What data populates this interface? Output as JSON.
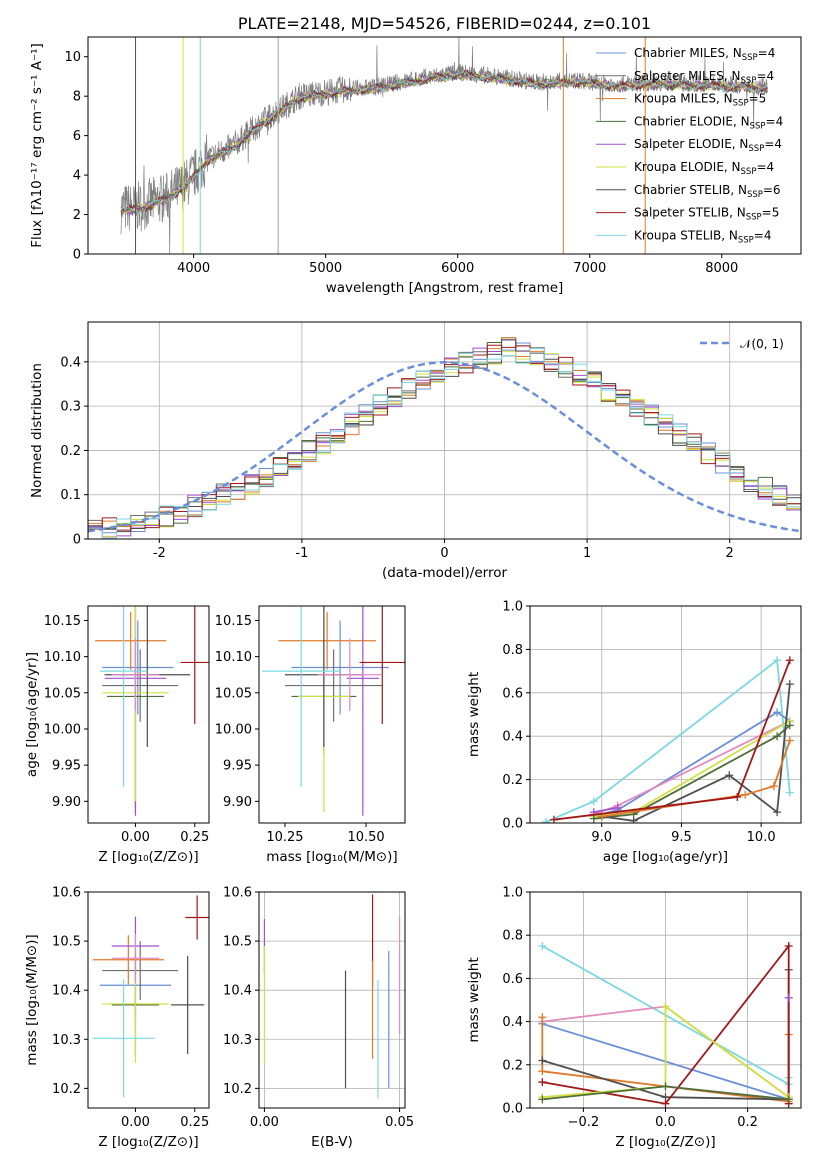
{
  "colors": {
    "Chabrier MILES": "#6a8fd8",
    "Salpeter MILES": "#6f6f6f",
    "Kroupa MILES": "#e07a2a",
    "Chabrier ELODIE": "#4f6e3a",
    "Salpeter ELODIE": "#a24fd0",
    "Kroupa ELODIE": "#d2e042",
    "Chabrier STELIB": "#4f4f4f",
    "Salpeter STELIB": "#a01818",
    "Kroupa STELIB": "#7ad8e0",
    "pink": "#e48ac0",
    "normal": "#6a8fd8"
  },
  "chart_data": [
    {
      "id": "spectrum",
      "type": "line",
      "title": "PLATE=2148, MJD=54526, FIBERID=0244, z=0.101",
      "xlabel": "wavelength [Angstrom, rest frame]",
      "ylabel": "Flux [fλ10⁻¹⁷ erg cm⁻² s⁻¹ A⁻¹]",
      "xlim": [
        3200,
        8600
      ],
      "ylim": [
        0,
        11
      ],
      "xticks": [
        4000,
        5000,
        6000,
        7000,
        8000
      ],
      "yticks": [
        0,
        2,
        4,
        6,
        8,
        10
      ],
      "grid": false,
      "legend_position": "right",
      "legend": [
        {
          "label": "Chabrier MILES, N",
          "sub": "SSP",
          "tail": "=4"
        },
        {
          "label": "Salpeter MILES, N",
          "sub": "SSP",
          "tail": "=4"
        },
        {
          "label": "Kroupa MILES, N",
          "sub": "SSP",
          "tail": "=5"
        },
        {
          "label": "Chabrier ELODIE, N",
          "sub": "SSP",
          "tail": "=4"
        },
        {
          "label": "Salpeter ELODIE, N",
          "sub": "SSP",
          "tail": "=4"
        },
        {
          "label": "Kroupa ELODIE, N",
          "sub": "SSP",
          "tail": "=4"
        },
        {
          "label": "Chabrier STELIB, N",
          "sub": "SSP",
          "tail": "=6"
        },
        {
          "label": "Salpeter STELIB, N",
          "sub": "SSP",
          "tail": "=5"
        },
        {
          "label": "Kroupa STELIB, N",
          "sub": "SSP",
          "tail": "=4"
        }
      ],
      "continuum": {
        "x": [
          3450,
          3600,
          3800,
          3950,
          4100,
          4300,
          4500,
          4800,
          5100,
          5400,
          5700,
          6000,
          6300,
          6600,
          6900,
          7200,
          7500,
          8000,
          8350
        ],
        "y": [
          2.3,
          2.4,
          2.9,
          3.6,
          4.8,
          5.5,
          6.6,
          8.0,
          8.3,
          8.5,
          8.9,
          9.2,
          9.0,
          8.7,
          8.8,
          8.6,
          8.7,
          8.6,
          8.5
        ]
      }
    },
    {
      "id": "residuals",
      "type": "histogram",
      "xlabel": "(data-model)/error",
      "ylabel": "Normed distribution",
      "xlim": [
        -2.5,
        2.5
      ],
      "ylim": [
        0,
        0.49
      ],
      "xticks": [
        -2,
        -1,
        0,
        1,
        2
      ],
      "yticks": [
        0.0,
        0.1,
        0.2,
        0.3,
        0.4
      ],
      "grid": true,
      "legend_label": "𝒩(0, 1)",
      "bin_width": 0.1,
      "bin_start": -2.5,
      "base_counts": [
        0.022,
        0.025,
        0.03,
        0.035,
        0.04,
        0.05,
        0.06,
        0.075,
        0.085,
        0.1,
        0.11,
        0.125,
        0.14,
        0.16,
        0.18,
        0.2,
        0.215,
        0.24,
        0.26,
        0.28,
        0.3,
        0.32,
        0.34,
        0.355,
        0.375,
        0.39,
        0.4,
        0.41,
        0.42,
        0.43,
        0.42,
        0.41,
        0.4,
        0.39,
        0.37,
        0.355,
        0.335,
        0.315,
        0.3,
        0.28,
        0.26,
        0.235,
        0.215,
        0.195,
        0.17,
        0.15,
        0.13,
        0.115,
        0.1,
        0.085,
        0.072,
        0.06,
        0.05,
        0.04,
        0.035,
        0.03,
        0.025,
        0.022
      ]
    },
    {
      "id": "age_vs_Z",
      "type": "errorbar",
      "xlabel": "Z [log₁₀(Z/Z⊙)]",
      "ylabel": "age  [log₁₀(age/yr)]",
      "xlim": [
        -0.2,
        0.31
      ],
      "ylim": [
        9.87,
        10.17
      ],
      "xticks": [
        0.0,
        0.25
      ],
      "xtick_labels": [
        "0.00",
        "0.25"
      ],
      "yticks": [
        9.9,
        9.95,
        10.0,
        10.05,
        10.1,
        10.15
      ],
      "ytick_labels": [
        "9.90",
        "9.95",
        "10.00",
        "10.05",
        "10.10",
        "10.15"
      ],
      "grid": false,
      "points": [
        {
          "s": "Chabrier MILES",
          "x": 0.01,
          "y": 10.085,
          "xe": 0.15,
          "ye": 0.065
        },
        {
          "s": "Salpeter MILES",
          "x": 0.02,
          "y": 10.06,
          "xe": 0.16,
          "ye": 0.05
        },
        {
          "s": "Kroupa MILES",
          "x": -0.02,
          "y": 10.122,
          "xe": 0.15,
          "ye": 0.04
        },
        {
          "s": "Chabrier ELODIE",
          "x": 0.0,
          "y": 10.045,
          "xe": 0.12,
          "ye": 0.16
        },
        {
          "s": "Salpeter ELODIE",
          "x": 0.0,
          "y": 10.07,
          "xe": 0.13,
          "ye": 0.19
        },
        {
          "s": "Kroupa ELODIE",
          "x": 0.0,
          "y": 10.05,
          "xe": 0.14,
          "ye": 0.15
        },
        {
          "s": "Chabrier STELIB",
          "x": 0.05,
          "y": 10.075,
          "xe": 0.18,
          "ye": 0.1
        },
        {
          "s": "Salpeter STELIB",
          "x": 0.25,
          "y": 10.092,
          "xe": 0.06,
          "ye": 0.085
        },
        {
          "s": "Kroupa STELIB",
          "x": -0.05,
          "y": 10.08,
          "xe": 0.1,
          "ye": 0.16
        },
        {
          "s": "pink",
          "x": 0.0,
          "y": 10.075,
          "xe": 0.1,
          "ye": 0.05
        }
      ]
    },
    {
      "id": "age_vs_mass",
      "type": "errorbar",
      "xlabel": "mass [log₁₀(M/M⊙)]",
      "xlim": [
        10.17,
        10.62
      ],
      "ylim": [
        9.87,
        10.17
      ],
      "xticks": [
        10.25,
        10.5
      ],
      "xtick_labels": [
        "10.25",
        "10.50"
      ],
      "yticks": [
        9.9,
        9.95,
        10.0,
        10.05,
        10.1,
        10.15
      ],
      "ytick_labels": [
        "9.90",
        "9.95",
        "10.00",
        "10.05",
        "10.10",
        "10.15"
      ],
      "grid": false,
      "points": [
        {
          "s": "Chabrier MILES",
          "x": 10.42,
          "y": 10.085,
          "xe": 0.15,
          "ye": 0.065
        },
        {
          "s": "Salpeter MILES",
          "x": 10.4,
          "y": 10.06,
          "xe": 0.15,
          "ye": 0.05
        },
        {
          "s": "Kroupa MILES",
          "x": 10.38,
          "y": 10.122,
          "xe": 0.15,
          "ye": 0.04
        },
        {
          "s": "Chabrier ELODIE",
          "x": 10.37,
          "y": 10.045,
          "xe": 0.1,
          "ye": 0.08
        },
        {
          "s": "Salpeter ELODIE",
          "x": 10.49,
          "y": 10.07,
          "xe": 0.05,
          "ye": 0.19
        },
        {
          "s": "Kroupa ELODIE",
          "x": 10.37,
          "y": 10.045,
          "xe": 0.08,
          "ye": 0.16
        },
        {
          "s": "Chabrier STELIB",
          "x": 10.37,
          "y": 10.075,
          "xe": 0.12,
          "ye": 0.1
        },
        {
          "s": "Salpeter STELIB",
          "x": 10.55,
          "y": 10.092,
          "xe": 0.07,
          "ye": 0.085
        },
        {
          "s": "Kroupa STELIB",
          "x": 10.3,
          "y": 10.08,
          "xe": 0.12,
          "ye": 0.16
        },
        {
          "s": "pink",
          "x": 10.45,
          "y": 10.075,
          "xe": 0.1,
          "ye": 0.05
        }
      ]
    },
    {
      "id": "weight_vs_age",
      "type": "line",
      "xlabel": "age  [log₁₀(age/yr)]",
      "ylabel": "mass weight",
      "xlim": [
        8.55,
        10.25
      ],
      "ylim": [
        0,
        1
      ],
      "xticks": [
        9.0,
        9.5,
        10.0
      ],
      "xtick_labels": [
        "9.0",
        "9.5",
        "10.0"
      ],
      "yticks": [
        0.0,
        0.2,
        0.4,
        0.6,
        0.8,
        1.0
      ],
      "ytick_labels": [
        "0.0",
        "0.2",
        "0.4",
        "0.6",
        "0.8",
        "1.0"
      ],
      "grid": true,
      "series": [
        {
          "s": "Kroupa STELIB",
          "x": [
            8.65,
            8.95,
            10.1,
            10.18
          ],
          "y": [
            0.005,
            0.1,
            0.75,
            0.14
          ]
        },
        {
          "s": "Chabrier MILES",
          "x": [
            8.95,
            9.1,
            10.1,
            10.18
          ],
          "y": [
            0.03,
            0.06,
            0.51,
            0.47
          ]
        },
        {
          "s": "pink",
          "x": [
            8.95,
            9.1,
            10.18
          ],
          "y": [
            0.04,
            0.08,
            0.47
          ]
        },
        {
          "s": "Kroupa ELODIE",
          "x": [
            8.95,
            9.2,
            10.18
          ],
          "y": [
            0.03,
            0.05,
            0.47
          ]
        },
        {
          "s": "Chabrier ELODIE",
          "x": [
            8.95,
            9.2,
            10.1,
            10.18
          ],
          "y": [
            0.02,
            0.04,
            0.4,
            0.45
          ]
        },
        {
          "s": "Salpeter ELODIE",
          "x": [
            8.95,
            9.1
          ],
          "y": [
            0.05,
            0.07
          ]
        },
        {
          "s": "Chabrier STELIB",
          "x": [
            9.0,
            9.2,
            9.8,
            10.1,
            10.18
          ],
          "y": [
            0.03,
            0.01,
            0.22,
            0.05,
            0.64
          ]
        },
        {
          "s": "Kroupa MILES",
          "x": [
            9.0,
            9.9,
            10.08,
            10.18
          ],
          "y": [
            0.03,
            0.13,
            0.17,
            0.38
          ]
        },
        {
          "s": "Salpeter STELIB",
          "x": [
            8.7,
            9.85,
            10.18
          ],
          "y": [
            0.015,
            0.12,
            0.75
          ]
        }
      ]
    },
    {
      "id": "mass_vs_Z",
      "type": "errorbar",
      "xlabel": "Z [log₁₀(Z/Z⊙)]",
      "ylabel": "mass [log₁₀(M/M⊙)]",
      "xlim": [
        -0.2,
        0.31
      ],
      "ylim": [
        10.16,
        10.6
      ],
      "xticks": [
        0.0,
        0.25
      ],
      "xtick_labels": [
        "0.00",
        "0.25"
      ],
      "yticks": [
        10.2,
        10.3,
        10.4,
        10.5,
        10.6
      ],
      "ytick_labels": [
        "10.2",
        "10.3",
        "10.4",
        "10.5",
        "10.6"
      ],
      "grid": false,
      "points": [
        {
          "s": "Chabrier MILES",
          "x": 0.0,
          "y": 10.41,
          "xe": 0.15,
          "ye": 0.07
        },
        {
          "s": "Salpeter MILES",
          "x": 0.02,
          "y": 10.44,
          "xe": 0.16,
          "ye": 0.06
        },
        {
          "s": "Kroupa MILES",
          "x": -0.03,
          "y": 10.462,
          "xe": 0.15,
          "ye": 0.05
        },
        {
          "s": "Chabrier ELODIE",
          "x": 0.0,
          "y": 10.37,
          "xe": 0.1,
          "ye": 0.1
        },
        {
          "s": "Salpeter ELODIE",
          "x": 0.0,
          "y": 10.49,
          "xe": 0.1,
          "ye": 0.06
        },
        {
          "s": "Kroupa ELODIE",
          "x": 0.0,
          "y": 10.372,
          "xe": 0.14,
          "ye": 0.12
        },
        {
          "s": "Chabrier STELIB",
          "x": 0.22,
          "y": 10.37,
          "xe": 0.07,
          "ye": 0.1
        },
        {
          "s": "Salpeter STELIB",
          "x": 0.26,
          "y": 10.548,
          "xe": 0.05,
          "ye": 0.045
        },
        {
          "s": "Kroupa STELIB",
          "x": -0.05,
          "y": 10.302,
          "xe": 0.13,
          "ye": 0.12
        },
        {
          "s": "pink",
          "x": 0.0,
          "y": 10.465,
          "xe": 0.1,
          "ye": 0.05
        }
      ]
    },
    {
      "id": "mass_vs_ebv",
      "type": "errorbar",
      "xlabel": "E(B-V)",
      "xlim": [
        -0.002,
        0.052
      ],
      "ylim": [
        10.16,
        10.6
      ],
      "xticks": [
        0.0,
        0.05
      ],
      "xtick_labels": [
        "0.00",
        "0.05"
      ],
      "yticks": [
        10.2,
        10.3,
        10.4,
        10.5,
        10.6
      ],
      "ytick_labels": [
        "10.2",
        "10.3",
        "10.4",
        "10.5",
        "10.6"
      ],
      "grid": true,
      "points": [
        {
          "s": "Salpeter ELODIE",
          "x": 0.0,
          "y": 10.49,
          "xe": 0,
          "ye": 0.055
        },
        {
          "s": "Kroupa ELODIE",
          "x": 0.0,
          "y": 10.37,
          "xe": 0,
          "ye": 0.12
        },
        {
          "s": "Chabrier STELIB",
          "x": 0.03,
          "y": 10.32,
          "xe": 0,
          "ye": 0.12
        },
        {
          "s": "Salpeter STELIB",
          "x": 0.04,
          "y": 10.5,
          "xe": 0,
          "ye": 0.095
        },
        {
          "s": "Kroupa MILES",
          "x": 0.04,
          "y": 10.36,
          "xe": 0,
          "ye": 0.1
        },
        {
          "s": "Kroupa STELIB",
          "x": 0.042,
          "y": 10.3,
          "xe": 0,
          "ye": 0.12
        },
        {
          "s": "Chabrier MILES",
          "x": 0.046,
          "y": 10.34,
          "xe": 0,
          "ye": 0.14
        },
        {
          "s": "pink",
          "x": 0.05,
          "y": 10.43,
          "xe": 0,
          "ye": 0.12
        }
      ]
    },
    {
      "id": "weight_vs_Z",
      "type": "line",
      "xlabel": "Z [log₁₀(Z/Z⊙)]",
      "ylabel": "mass weight",
      "xlim": [
        -0.33,
        0.33
      ],
      "ylim": [
        0,
        1
      ],
      "xticks": [
        -0.2,
        0.0,
        0.2
      ],
      "xtick_labels": [
        "−0.2",
        "0.0",
        "0.2"
      ],
      "yticks": [
        0.0,
        0.2,
        0.4,
        0.6,
        0.8,
        1.0
      ],
      "ytick_labels": [
        "0.0",
        "0.2",
        "0.4",
        "0.6",
        "0.8",
        "1.0"
      ],
      "grid": true,
      "series": [
        {
          "s": "Kroupa STELIB",
          "x": [
            -0.3,
            0.3,
            0.3
          ],
          "y": [
            0.75,
            0.11,
            0.14
          ]
        },
        {
          "s": "pink",
          "x": [
            -0.3,
            0.0,
            0.3
          ],
          "y": [
            0.4,
            0.47,
            0.05
          ]
        },
        {
          "s": "Chabrier MILES",
          "x": [
            -0.3,
            0.3,
            0.3
          ],
          "y": [
            0.39,
            0.04,
            0.51
          ]
        },
        {
          "s": "Kroupa MILES",
          "x": [
            -0.3,
            -0.3,
            0.3,
            0.3
          ],
          "y": [
            0.42,
            0.17,
            0.03,
            0.34
          ]
        },
        {
          "s": "Chabrier STELIB",
          "x": [
            -0.3,
            0.0,
            0.3,
            0.3
          ],
          "y": [
            0.22,
            0.05,
            0.04,
            0.64
          ]
        },
        {
          "s": "Salpeter STELIB",
          "x": [
            -0.3,
            0.0,
            0.3,
            0.3
          ],
          "y": [
            0.12,
            0.02,
            0.75,
            0.02
          ]
        },
        {
          "s": "Kroupa ELODIE",
          "x": [
            -0.3,
            0.0,
            0.0,
            0.3
          ],
          "y": [
            0.05,
            0.1,
            0.47,
            0.05
          ]
        },
        {
          "s": "Chabrier ELODIE",
          "x": [
            -0.3,
            0.0,
            0.3
          ],
          "y": [
            0.04,
            0.1,
            0.04
          ]
        },
        {
          "s": "Salpeter ELODIE",
          "x": [
            0.3
          ],
          "y": [
            0.51
          ]
        }
      ]
    }
  ]
}
